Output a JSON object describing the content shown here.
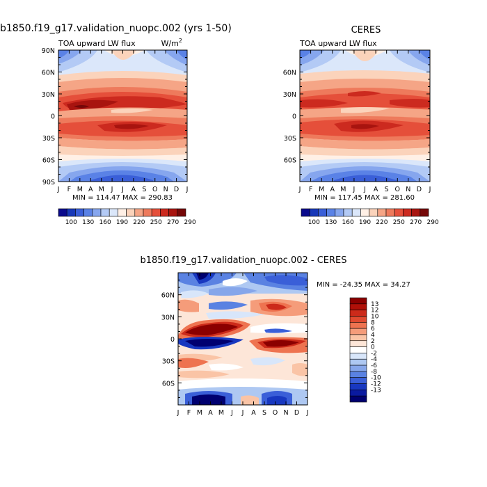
{
  "chart_data": [
    {
      "type": "heatmap",
      "id": "model",
      "title": "b1850.f19_g17.validation_nuopc.002 (yrs 1-50)",
      "left_label": "TOA upward LW flux",
      "right_label": "W/m",
      "units_superscript": "2",
      "x_ticks": [
        "J",
        "F",
        "M",
        "A",
        "M",
        "J",
        "J",
        "A",
        "S",
        "O",
        "N",
        "D",
        "J"
      ],
      "y_ticks": [
        {
          "value": 90,
          "label": "90N"
        },
        {
          "value": 60,
          "label": "60N"
        },
        {
          "value": 30,
          "label": "30N"
        },
        {
          "value": 0,
          "label": "0"
        },
        {
          "value": -30,
          "label": "30S"
        },
        {
          "value": -60,
          "label": "60S"
        },
        {
          "value": -90,
          "label": "90S"
        }
      ],
      "ylim": [
        -90,
        90
      ],
      "stats": "MIN = 114.47  MAX = 290.83",
      "colorbar": {
        "orientation": "horizontal",
        "labels": [
          "100",
          "130",
          "160",
          "190",
          "220",
          "250",
          "270",
          "290"
        ],
        "colors": [
          "#0a0a8c",
          "#1838b8",
          "#3a5fd8",
          "#5a82e6",
          "#86a6ee",
          "#b3caf5",
          "#dbe7fa",
          "#fff0e6",
          "#fbd3bb",
          "#f5a586",
          "#ee7a5c",
          "#e54f3a",
          "#cc2a1f",
          "#a8140f",
          "#750808"
        ]
      }
    },
    {
      "type": "heatmap",
      "id": "obs",
      "title": "CERES",
      "left_label": "TOA upward LW flux",
      "x_ticks": [
        "J",
        "F",
        "M",
        "A",
        "M",
        "J",
        "J",
        "A",
        "S",
        "O",
        "N",
        "D",
        "J"
      ],
      "y_ticks": [
        {
          "value": 60,
          "label": "60N"
        },
        {
          "value": 30,
          "label": "30N"
        },
        {
          "value": 0,
          "label": "0"
        },
        {
          "value": -30,
          "label": "30S"
        },
        {
          "value": -60,
          "label": "60S"
        }
      ],
      "ylim": [
        -90,
        90
      ],
      "stats": "MIN = 117.45  MAX = 281.60",
      "colorbar": {
        "orientation": "horizontal",
        "labels": [
          "100",
          "130",
          "160",
          "190",
          "220",
          "250",
          "270",
          "290"
        ],
        "colors": [
          "#0a0a8c",
          "#1838b8",
          "#3a5fd8",
          "#5a82e6",
          "#86a6ee",
          "#b3caf5",
          "#dbe7fa",
          "#fff0e6",
          "#fbd3bb",
          "#f5a586",
          "#ee7a5c",
          "#e54f3a",
          "#cc2a1f",
          "#a8140f",
          "#750808"
        ]
      }
    },
    {
      "type": "heatmap",
      "id": "diff",
      "title": "b1850.f19_g17.validation_nuopc.002 - CERES",
      "x_ticks": [
        "J",
        "F",
        "M",
        "A",
        "M",
        "J",
        "J",
        "A",
        "S",
        "O",
        "N",
        "D",
        "J"
      ],
      "y_ticks": [
        {
          "value": 60,
          "label": "60N"
        },
        {
          "value": 30,
          "label": "30N"
        },
        {
          "value": 0,
          "label": "0"
        },
        {
          "value": -30,
          "label": "30S"
        },
        {
          "value": -60,
          "label": "60S"
        }
      ],
      "ylim": [
        -90,
        90
      ],
      "stats": "MIN = -24.35  MAX =  34.27",
      "colorbar": {
        "orientation": "vertical",
        "labels": [
          "13",
          "12",
          "10",
          "8",
          "6",
          "4",
          "2",
          "0",
          "-2",
          "-4",
          "-6",
          "-8",
          "-10",
          "-12",
          "-13"
        ],
        "colors": [
          "#8b0000",
          "#b01008",
          "#cc2a1a",
          "#e04a30",
          "#ee7350",
          "#f59c7a",
          "#fac4a6",
          "#fde6d8",
          "#ffffff",
          "#d8e6fa",
          "#aec8f2",
          "#86a6ea",
          "#5a82e2",
          "#3a5fd8",
          "#1838c0",
          "#0a1aa0",
          "#000070"
        ]
      }
    }
  ]
}
